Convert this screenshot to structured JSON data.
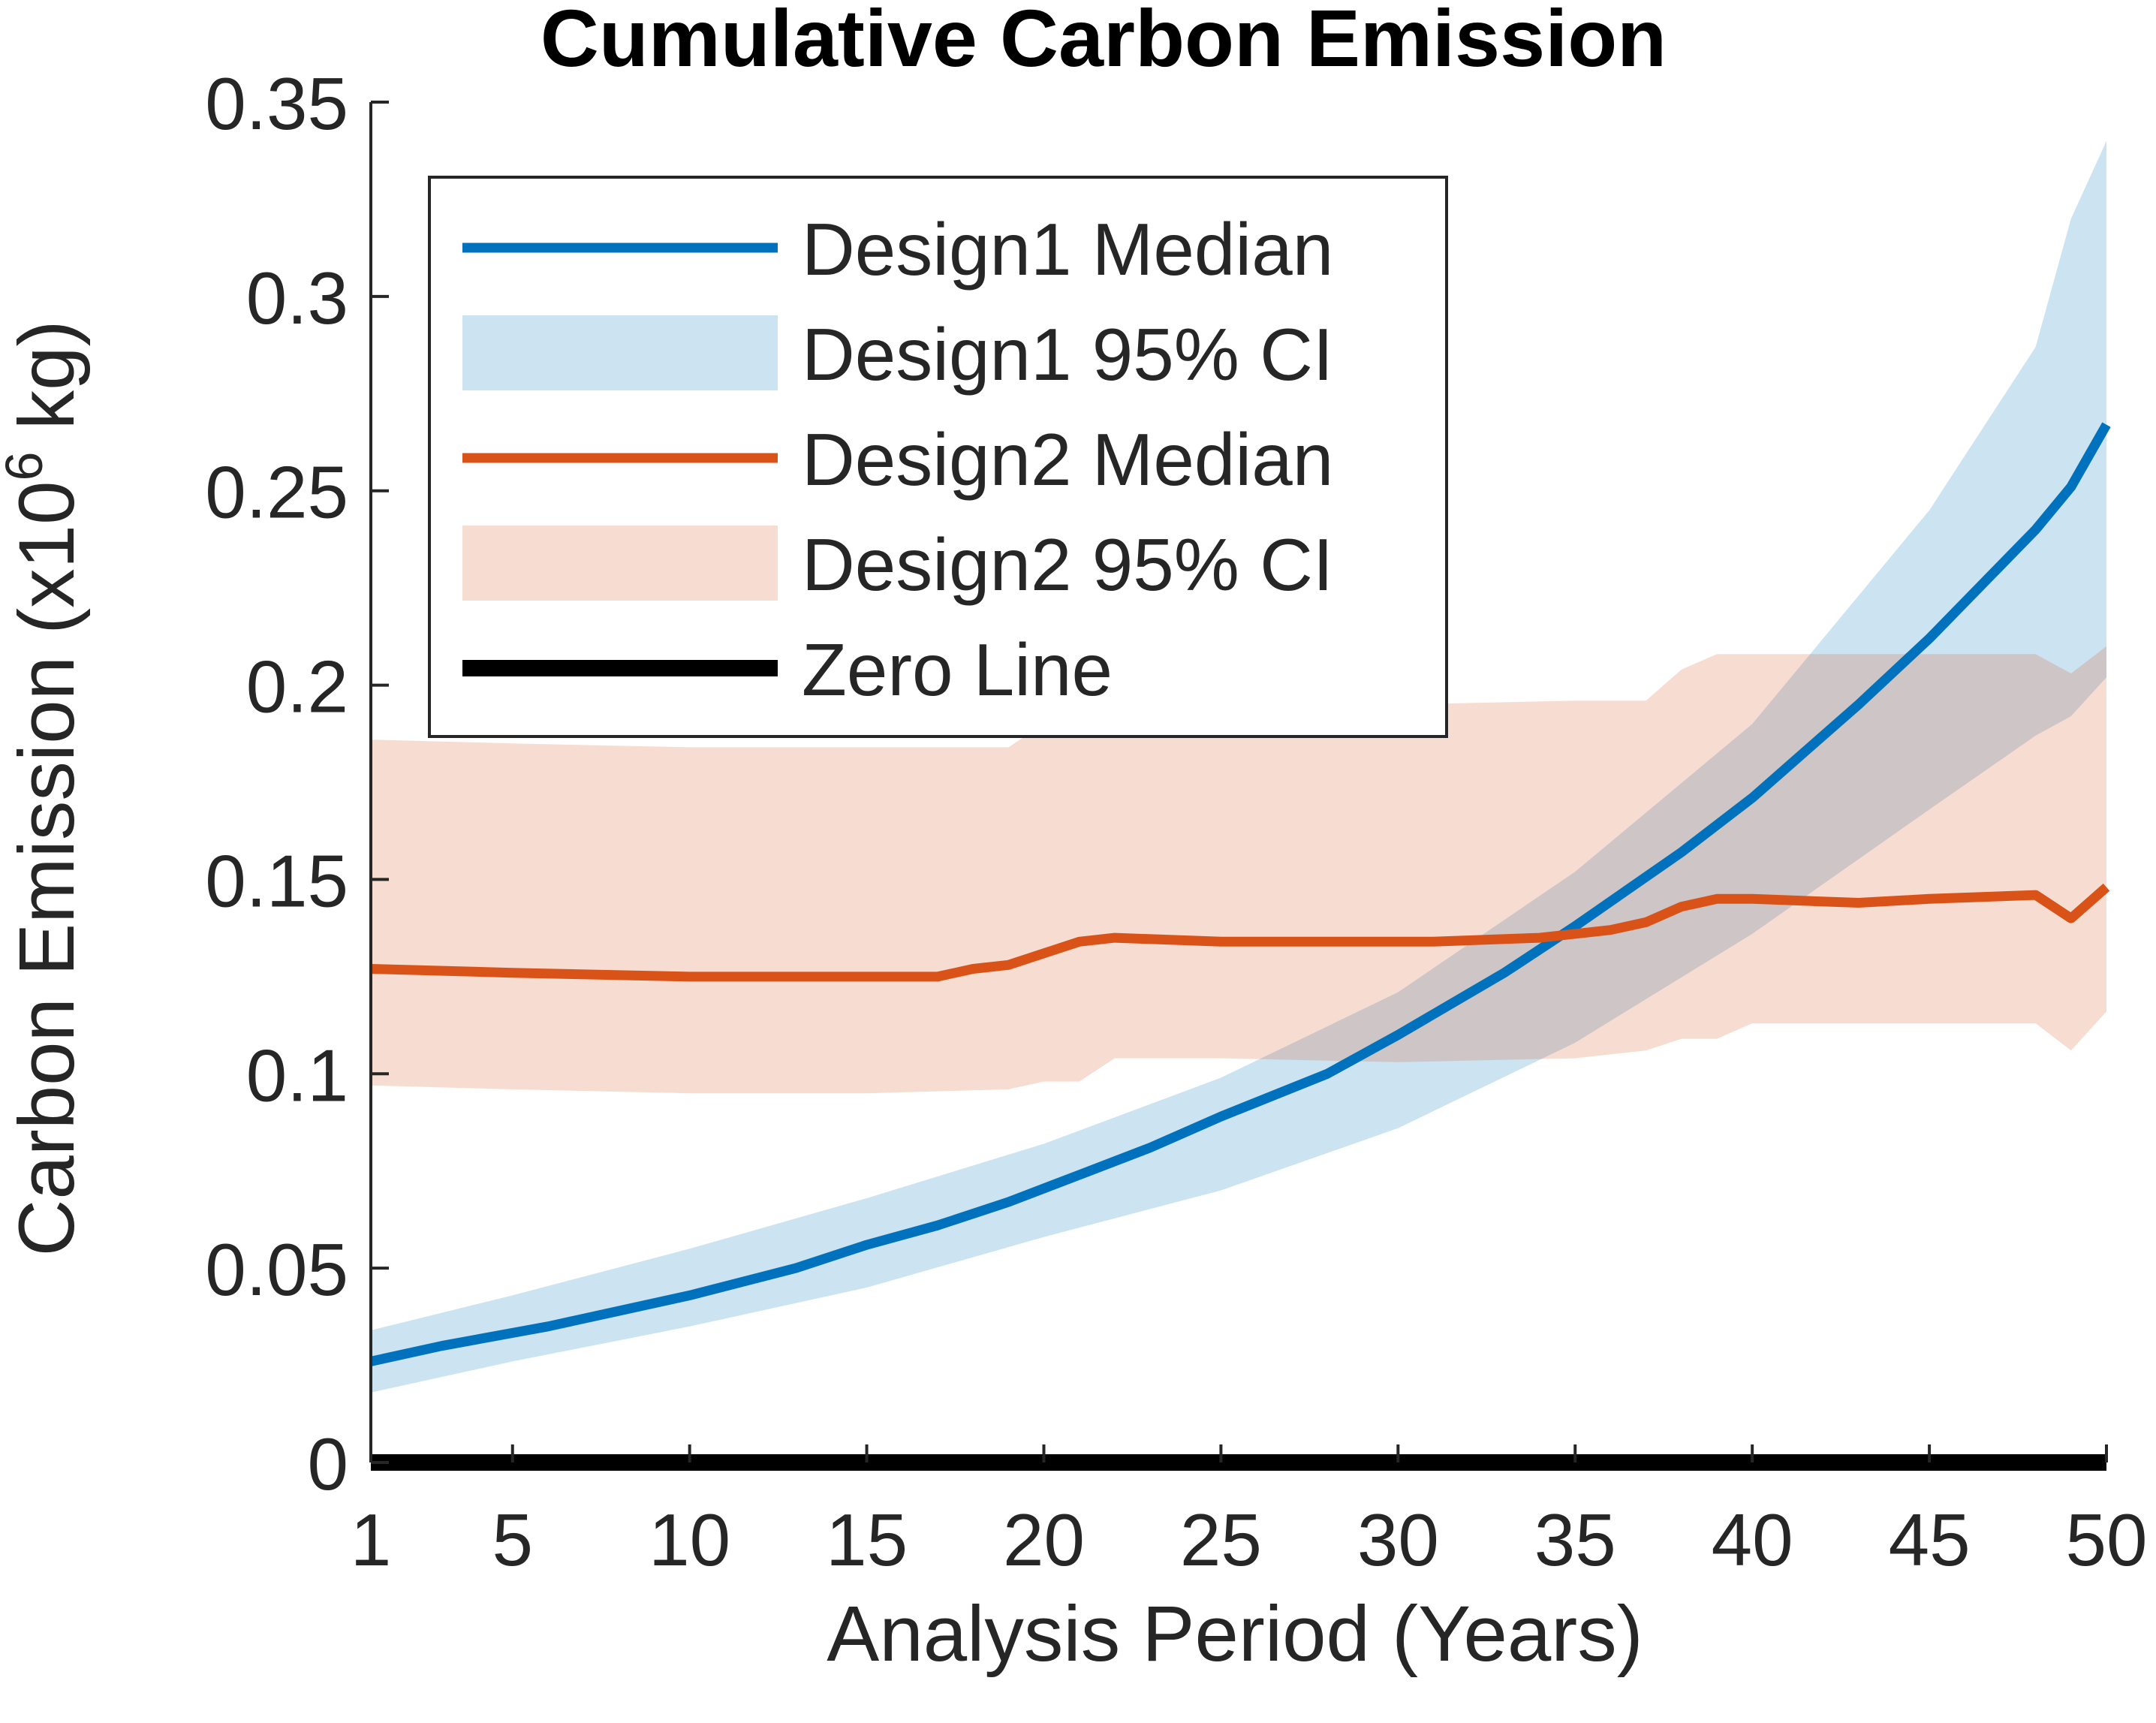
{
  "chart_data": {
    "type": "line",
    "title": "Cumulative Carbon Emission",
    "xlabel": "Analysis Period (Years)",
    "ylabel": "Carbon Emission (x10",
    "ylabel_superscript": "6",
    "ylabel_suffix": " kg)",
    "xlim": [
      1,
      50
    ],
    "ylim": [
      0,
      0.35
    ],
    "xticks": [
      1,
      5,
      10,
      15,
      20,
      25,
      30,
      35,
      40,
      45,
      50
    ],
    "xtick_labels": [
      "1",
      "5",
      "10",
      "15",
      "20",
      "25",
      "30",
      "35",
      "40",
      "45",
      "50"
    ],
    "yticks": [
      0,
      0.05,
      0.1,
      0.15,
      0.2,
      0.25,
      0.3,
      0.35
    ],
    "ytick_labels": [
      "0",
      "0.05",
      "0.1",
      "0.15",
      "0.2",
      "0.25",
      "0.3",
      "0.35"
    ],
    "grid": false,
    "legend_position": "top-left",
    "series": [
      {
        "name": "Design1 Median",
        "kind": "line",
        "color": "#0072BD",
        "x": [
          1,
          3,
          6,
          8,
          10,
          13,
          15,
          17,
          19,
          21,
          23,
          25,
          28,
          30,
          33,
          35,
          38,
          40,
          43,
          45,
          48,
          49,
          50
        ],
        "y": [
          0.026,
          0.03,
          0.035,
          0.039,
          0.043,
          0.05,
          0.056,
          0.061,
          0.067,
          0.074,
          0.081,
          0.089,
          0.1,
          0.11,
          0.126,
          0.138,
          0.157,
          0.171,
          0.195,
          0.212,
          0.24,
          0.251,
          0.267
        ]
      },
      {
        "name": "Design1 95% CI",
        "kind": "band",
        "color": "#0072BD",
        "opacity": 0.2,
        "x": [
          1,
          5,
          10,
          15,
          20,
          25,
          30,
          35,
          40,
          45,
          48,
          49,
          50
        ],
        "upper": [
          0.034,
          0.043,
          0.055,
          0.068,
          0.082,
          0.099,
          0.121,
          0.152,
          0.19,
          0.245,
          0.287,
          0.32,
          0.34
        ],
        "lower": [
          0.018,
          0.026,
          0.035,
          0.045,
          0.058,
          0.07,
          0.086,
          0.108,
          0.136,
          0.168,
          0.187,
          0.192,
          0.202
        ]
      },
      {
        "name": "Design2 Median",
        "kind": "line",
        "color": "#D95319",
        "x": [
          1,
          5,
          10,
          15,
          17,
          18,
          19,
          20,
          21,
          22,
          25,
          28,
          31,
          34,
          36,
          37,
          38,
          39,
          40,
          43,
          45,
          48,
          49,
          50
        ],
        "y": [
          0.127,
          0.126,
          0.125,
          0.125,
          0.125,
          0.127,
          0.128,
          0.131,
          0.134,
          0.135,
          0.134,
          0.134,
          0.134,
          0.135,
          0.137,
          0.139,
          0.143,
          0.145,
          0.145,
          0.144,
          0.145,
          0.146,
          0.14,
          0.148
        ]
      },
      {
        "name": "Design2 95% CI",
        "kind": "band",
        "color": "#D95319",
        "opacity": 0.2,
        "x": [
          1,
          5,
          10,
          15,
          19,
          20,
          21,
          22,
          25,
          30,
          35,
          37,
          38,
          39,
          40,
          45,
          48,
          49,
          50
        ],
        "upper": [
          0.186,
          0.185,
          0.184,
          0.184,
          0.184,
          0.19,
          0.195,
          0.195,
          0.195,
          0.195,
          0.196,
          0.196,
          0.204,
          0.208,
          0.208,
          0.208,
          0.208,
          0.203,
          0.21
        ],
        "lower": [
          0.097,
          0.096,
          0.095,
          0.095,
          0.096,
          0.098,
          0.098,
          0.104,
          0.104,
          0.103,
          0.104,
          0.106,
          0.109,
          0.109,
          0.113,
          0.113,
          0.113,
          0.106,
          0.116
        ]
      },
      {
        "name": "Zero Line",
        "kind": "line",
        "color": "#000000",
        "x": [
          1,
          50
        ],
        "y": [
          0,
          0
        ]
      }
    ]
  }
}
